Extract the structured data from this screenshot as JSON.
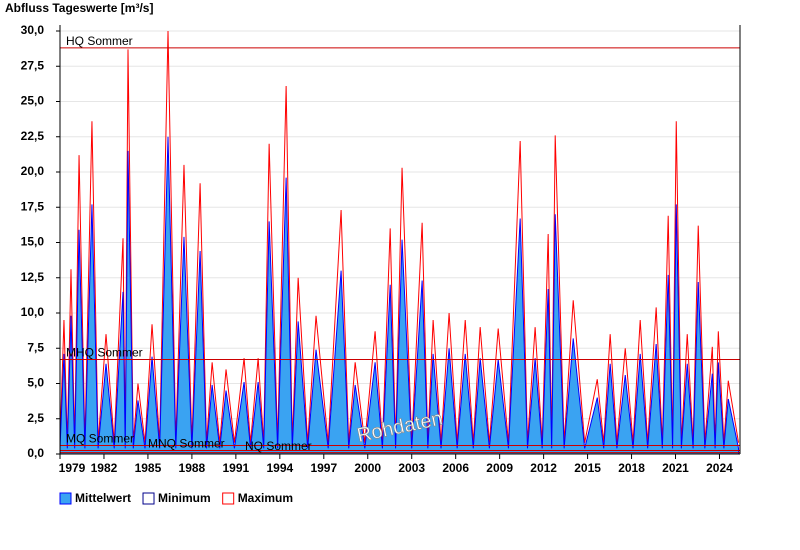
{
  "chart_data": {
    "type": "line",
    "title": "Abfluss Tageswerte [m³/s]",
    "watermark": "Rohdaten",
    "x": [
      1979.0,
      1979.27,
      1979.5,
      1979.75,
      1980.0,
      1980.3,
      1980.7,
      1981.18,
      1981.6,
      1982.14,
      1982.7,
      1983.3,
      1983.45,
      1983.64,
      1984.0,
      1984.32,
      1984.8,
      1985.28,
      1985.8,
      1986.37,
      1986.9,
      1987.46,
      1988.0,
      1988.56,
      1989.0,
      1989.38,
      1989.9,
      1990.33,
      1990.9,
      1991.56,
      1992.0,
      1992.52,
      1992.9,
      1993.27,
      1993.85,
      1994.43,
      1994.85,
      1995.25,
      1995.9,
      1996.47,
      1997.3,
      1998.18,
      1998.7,
      1999.14,
      1999.8,
      2000.5,
      2001.0,
      2001.53,
      2001.9,
      2002.34,
      2003.0,
      2003.71,
      2004.1,
      2004.46,
      2005.0,
      2005.55,
      2006.1,
      2006.65,
      2007.2,
      2007.67,
      2008.3,
      2008.9,
      2009.6,
      2010.4,
      2010.9,
      2011.42,
      2011.9,
      2012.31,
      2012.55,
      2012.79,
      2013.4,
      2014.02,
      2014.8,
      2015.66,
      2016.1,
      2016.54,
      2017.0,
      2017.57,
      2018.1,
      2018.59,
      2019.1,
      2019.68,
      2020.1,
      2020.5,
      2020.8,
      2021.05,
      2021.4,
      2021.8,
      2022.2,
      2022.55,
      2023.0,
      2023.51,
      2023.7,
      2023.92,
      2024.3,
      2024.6,
      2025.3
    ],
    "series": [
      {
        "name": "Mittelwert",
        "color": "#3aa3f2",
        "edge": "#0000ff",
        "area": true,
        "values": [
          0.4,
          7.1,
          0.4,
          9.8,
          0.4,
          15.9,
          0.4,
          17.7,
          0.4,
          6.4,
          0.4,
          11.5,
          0.4,
          21.5,
          0.4,
          3.8,
          0.4,
          6.9,
          0.4,
          22.5,
          0.4,
          15.4,
          0.4,
          14.4,
          0.4,
          4.9,
          0.4,
          4.5,
          0.4,
          5.1,
          0.4,
          5.1,
          0.4,
          16.5,
          0.4,
          19.6,
          0.4,
          9.4,
          0.4,
          7.4,
          0.4,
          13.0,
          0.4,
          4.9,
          0.4,
          6.5,
          0.4,
          12.0,
          0.4,
          15.2,
          0.4,
          12.3,
          0.4,
          7.1,
          0.4,
          7.5,
          0.4,
          7.1,
          0.4,
          6.8,
          0.4,
          6.7,
          0.4,
          16.7,
          0.4,
          6.8,
          0.4,
          11.7,
          0.4,
          17.0,
          0.4,
          8.2,
          0.4,
          4.0,
          0.4,
          6.4,
          0.4,
          5.6,
          0.4,
          7.1,
          0.4,
          7.8,
          0.4,
          12.7,
          0.4,
          17.7,
          0.4,
          6.4,
          0.4,
          12.2,
          0.4,
          5.7,
          0.4,
          6.5,
          0.4,
          3.9,
          0.4
        ]
      },
      {
        "name": "Minimum",
        "color": "#00008b",
        "area": false,
        "values": [
          0.2,
          3.3,
          0.2,
          4.6,
          0.2,
          7.4,
          0.2,
          8.3,
          0.2,
          3.0,
          0.2,
          5.4,
          0.2,
          10.0,
          0.2,
          1.8,
          0.2,
          3.2,
          0.2,
          10.5,
          0.2,
          7.2,
          0.2,
          6.7,
          0.2,
          2.3,
          0.2,
          2.1,
          0.2,
          2.4,
          0.2,
          2.4,
          0.2,
          7.7,
          0.2,
          9.1,
          0.2,
          4.4,
          0.2,
          3.4,
          0.2,
          6.1,
          0.2,
          2.3,
          0.2,
          3.0,
          0.2,
          5.6,
          0.2,
          7.1,
          0.2,
          5.7,
          0.2,
          3.3,
          0.2,
          3.5,
          0.2,
          3.3,
          0.2,
          3.2,
          0.2,
          3.1,
          0.2,
          7.8,
          0.2,
          3.2,
          0.2,
          5.5,
          0.2,
          7.9,
          0.2,
          3.8,
          0.2,
          1.9,
          0.2,
          3.0,
          0.2,
          2.6,
          0.2,
          3.3,
          0.2,
          3.6,
          0.2,
          5.9,
          0.2,
          8.3,
          0.2,
          3.0,
          0.2,
          5.7,
          0.2,
          2.7,
          0.2,
          3.0,
          0.2,
          1.8,
          0.2
        ]
      },
      {
        "name": "Maximum",
        "color": "#ff0000",
        "area": false,
        "values": [
          0.8,
          9.5,
          0.8,
          13.1,
          0.8,
          21.2,
          0.8,
          23.6,
          0.8,
          8.5,
          0.8,
          15.3,
          0.8,
          28.7,
          0.8,
          5.0,
          0.8,
          9.2,
          0.8,
          30.0,
          0.8,
          20.5,
          0.8,
          19.2,
          0.8,
          6.5,
          0.8,
          6.0,
          0.8,
          6.8,
          0.8,
          6.8,
          0.8,
          22.0,
          0.8,
          26.1,
          0.8,
          12.5,
          0.8,
          9.8,
          0.8,
          17.3,
          0.8,
          6.5,
          0.8,
          8.7,
          0.8,
          16.0,
          0.8,
          20.3,
          0.8,
          16.4,
          0.8,
          9.5,
          0.8,
          10.0,
          0.8,
          9.5,
          0.8,
          9.0,
          0.8,
          8.9,
          0.8,
          22.2,
          0.8,
          9.0,
          0.8,
          15.6,
          0.8,
          22.6,
          0.8,
          10.9,
          0.8,
          5.3,
          0.8,
          8.5,
          0.8,
          7.5,
          0.8,
          9.5,
          0.8,
          10.4,
          0.8,
          16.9,
          0.8,
          23.6,
          0.8,
          8.5,
          0.8,
          16.2,
          0.8,
          7.6,
          0.8,
          8.7,
          0.8,
          5.2,
          0.8
        ]
      }
    ],
    "reference_lines": [
      {
        "label": "HQ Sommer",
        "value": 28.8,
        "color": "#cc0000"
      },
      {
        "label": "MHQ Sommer",
        "value": 6.7,
        "color": "#cc0000"
      },
      {
        "label": "MQ Sommer",
        "value": 0.6,
        "color": "#cc0000"
      },
      {
        "label": "MNQ Sommer",
        "value": 0.25,
        "color": "#cc0000"
      },
      {
        "label": "NQ Sommer",
        "value": 0.1,
        "color": "#cc0000"
      }
    ],
    "xlim": [
      1979,
      2025.4
    ],
    "xticks": [
      1979,
      1982,
      1985,
      1988,
      1991,
      1994,
      1997,
      2000,
      2003,
      2006,
      2009,
      2012,
      2015,
      2018,
      2021,
      2024
    ],
    "ylim": [
      0,
      30
    ],
    "yticks": [
      {
        "value": 0,
        "label": "0,0"
      },
      {
        "value": 2.5,
        "label": "2,5"
      },
      {
        "value": 5,
        "label": "5,0"
      },
      {
        "value": 7.5,
        "label": "7,5"
      },
      {
        "value": 10,
        "label": "10,0"
      },
      {
        "value": 12.5,
        "label": "12,5"
      },
      {
        "value": 15,
        "label": "15,0"
      },
      {
        "value": 17.5,
        "label": "17,5"
      },
      {
        "value": 20,
        "label": "20,0"
      },
      {
        "value": 22.5,
        "label": "22,5"
      },
      {
        "value": 25,
        "label": "25,0"
      },
      {
        "value": 27.5,
        "label": "27,5"
      },
      {
        "value": 30,
        "label": "30,0"
      }
    ],
    "grid": true,
    "legend": "bottom-left"
  }
}
